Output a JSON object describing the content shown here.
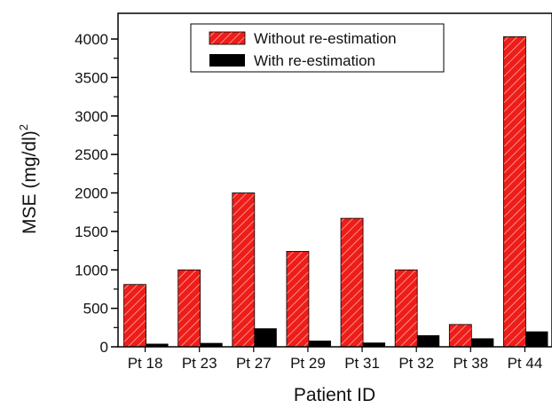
{
  "chart_data": {
    "type": "bar",
    "categories": [
      "Pt 18",
      "Pt 23",
      "Pt 27",
      "Pt 29",
      "Pt 31",
      "Pt 32",
      "Pt 38",
      "Pt 44"
    ],
    "series": [
      {
        "name": "Without re-estimation",
        "values": [
          810,
          1000,
          2000,
          1240,
          1670,
          1000,
          290,
          4030
        ],
        "color": "#ee1c1c",
        "pattern": "diagonal-hatch"
      },
      {
        "name": "With re-estimation",
        "values": [
          40,
          50,
          240,
          80,
          55,
          150,
          110,
          200
        ],
        "color": "#000000",
        "pattern": "solid"
      }
    ],
    "xlabel": "Patient ID",
    "ylabel": "MSE (mg/dl)",
    "ylabel_superscript": "2",
    "ylim": [
      0,
      4000
    ],
    "yticks": [
      "0",
      "500",
      "1000",
      "1500",
      "2000",
      "2500",
      "3000",
      "3500",
      "4000"
    ],
    "legend_placement": "top-center",
    "grid": false
  }
}
